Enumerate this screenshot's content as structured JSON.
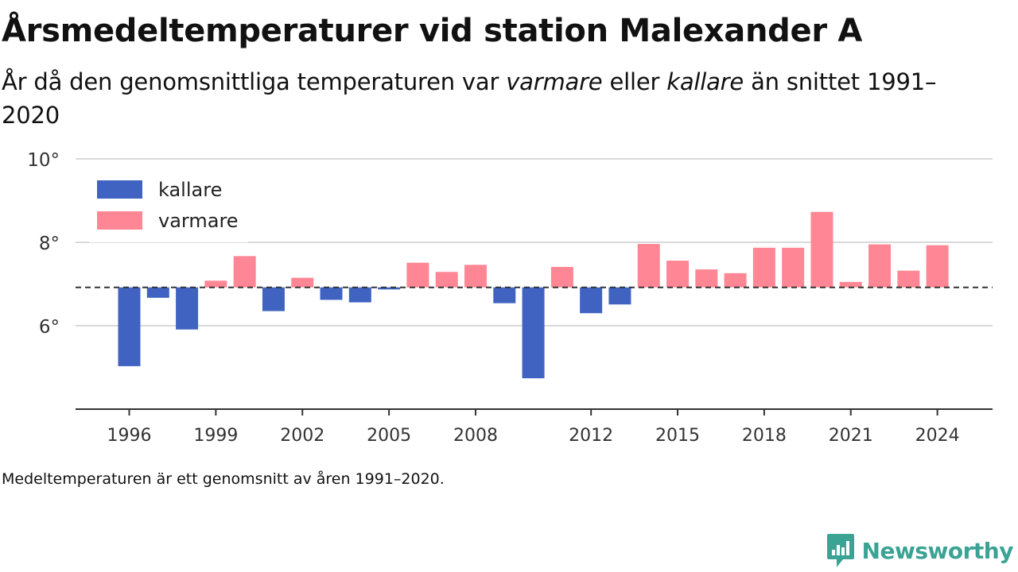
{
  "header": {
    "title": "Årsmedeltemperaturer vid station Malexander A",
    "subtitle_pre": "År då den genomsnittliga temperaturen var ",
    "subtitle_em1": "varmare",
    "subtitle_mid": " eller ",
    "subtitle_em2": "kallare",
    "subtitle_post": " än snittet 1991–2020"
  },
  "footnote": "Medeltemperaturen är ett genomsnitt av åren 1991–2020.",
  "brand": {
    "name": "Newsworthy",
    "color": "#3aa394"
  },
  "colors": {
    "kallare": "#4063c1",
    "varmare": "#ff8795",
    "reference_line": "#333333",
    "grid": "#d9d9d9"
  },
  "chart_data": {
    "type": "bar",
    "title": "Årsmedeltemperaturer vid station Malexander A",
    "xlabel": "",
    "ylabel": "",
    "ylim": [
      4.0,
      10.0
    ],
    "baseline": 6.92,
    "baseline_style": "dashed",
    "grid": true,
    "y_ticks": [
      {
        "value": 6,
        "label": "6°"
      },
      {
        "value": 8,
        "label": "8°"
      },
      {
        "value": 10,
        "label": "10°"
      }
    ],
    "x_ticks": [
      1996,
      1999,
      2002,
      2005,
      2008,
      2012,
      2015,
      2018,
      2021,
      2024
    ],
    "legend": {
      "position": "top-left",
      "entries": [
        {
          "key": "kallare",
          "label": "kallare"
        },
        {
          "key": "varmare",
          "label": "varmare"
        }
      ]
    },
    "series": [
      {
        "year": 1996,
        "value": 5.03
      },
      {
        "year": 1997,
        "value": 6.67
      },
      {
        "year": 1998,
        "value": 5.91
      },
      {
        "year": 1999,
        "value": 7.08
      },
      {
        "year": 2000,
        "value": 7.67
      },
      {
        "year": 2001,
        "value": 6.35
      },
      {
        "year": 2002,
        "value": 7.15
      },
      {
        "year": 2003,
        "value": 6.62
      },
      {
        "year": 2004,
        "value": 6.56
      },
      {
        "year": 2005,
        "value": 6.87
      },
      {
        "year": 2006,
        "value": 7.51
      },
      {
        "year": 2007,
        "value": 7.29
      },
      {
        "year": 2008,
        "value": 7.46
      },
      {
        "year": 2009,
        "value": 6.54
      },
      {
        "year": 2010,
        "value": 4.74
      },
      {
        "year": 2011,
        "value": 7.41
      },
      {
        "year": 2012,
        "value": 6.3
      },
      {
        "year": 2013,
        "value": 6.51
      },
      {
        "year": 2014,
        "value": 7.96
      },
      {
        "year": 2015,
        "value": 7.56
      },
      {
        "year": 2016,
        "value": 7.35
      },
      {
        "year": 2017,
        "value": 7.26
      },
      {
        "year": 2018,
        "value": 7.87
      },
      {
        "year": 2019,
        "value": 7.87
      },
      {
        "year": 2020,
        "value": 8.73
      },
      {
        "year": 2021,
        "value": 7.05
      },
      {
        "year": 2022,
        "value": 7.95
      },
      {
        "year": 2023,
        "value": 7.32
      },
      {
        "year": 2024,
        "value": 7.93
      }
    ]
  }
}
